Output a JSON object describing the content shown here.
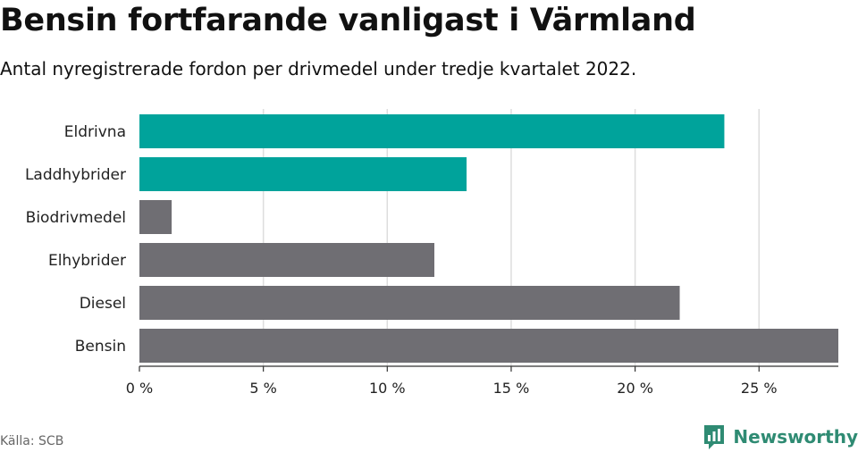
{
  "title": "Bensin fortfarande vanligast i Värmland",
  "subtitle": "Antal nyregistrerade fordon per drivmedel under tredje kvartalet 2022.",
  "source": "Källa: SCB",
  "brand": "Newsworthy",
  "colors": {
    "highlight": "#00a39b",
    "other": "#6f6e73",
    "grid": "#dddddd",
    "axis": "#333333",
    "brand": "#2f8b73"
  },
  "chart_data": {
    "type": "bar",
    "orientation": "horizontal",
    "categories": [
      "Eldrivna",
      "Laddhybrider",
      "Biodrivmedel",
      "Elhybrider",
      "Diesel",
      "Bensin"
    ],
    "values": [
      23.6,
      13.2,
      1.3,
      11.9,
      21.8,
      28.2
    ],
    "highlighted": [
      true,
      true,
      false,
      false,
      false,
      false
    ],
    "xlim": [
      0,
      28.2
    ],
    "xticks": [
      0,
      5,
      10,
      15,
      20,
      25
    ],
    "xtick_labels": [
      "0 %",
      "5 %",
      "10 %",
      "15 %",
      "20 %",
      "25 %"
    ],
    "grid": true
  }
}
